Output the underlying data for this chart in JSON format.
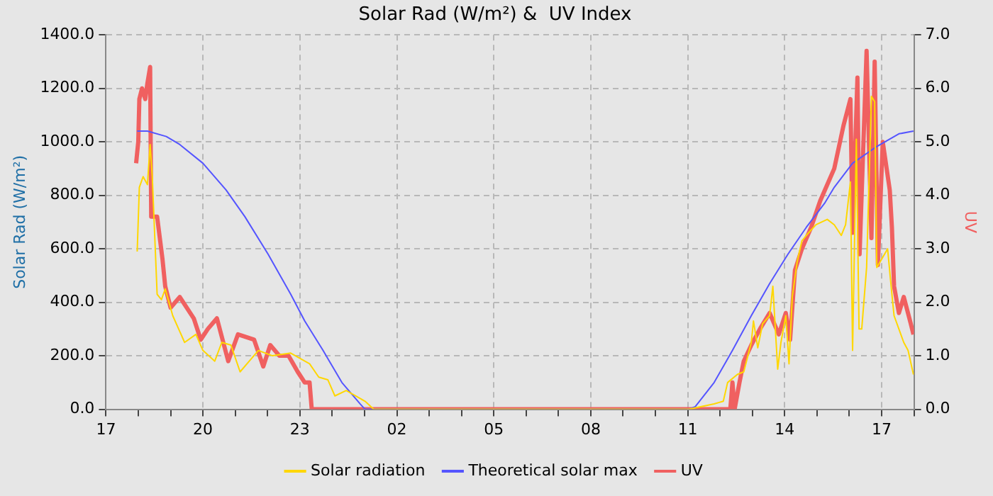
{
  "chart_data": {
    "type": "line",
    "title": "Solar Rad (W/m²) &  UV Index",
    "ylabel": "Solar Rad (W/m²)",
    "y2label": "UV",
    "xlim": [
      "--01-01T17:00",
      "--01-02T18:00"
    ],
    "xticks": [
      {
        "value": "--01-01T17:00",
        "label": "17"
      },
      {
        "value": "--01-01T18:00",
        "label": null
      },
      {
        "value": "--01-01T19:00",
        "label": null
      },
      {
        "value": "--01-01T20:00",
        "label": "20"
      },
      {
        "value": "--01-01T21:00",
        "label": null
      },
      {
        "value": "--01-01T22:00",
        "label": null
      },
      {
        "value": "--01-01T23:00",
        "label": "23"
      },
      {
        "value": "--01-02T00:00",
        "label": null
      },
      {
        "value": "--01-02T01:00",
        "label": null
      },
      {
        "value": "--01-02T02:00",
        "label": "02"
      },
      {
        "value": "--01-02T03:00",
        "label": null
      },
      {
        "value": "--01-02T04:00",
        "label": null
      },
      {
        "value": "--01-02T05:00",
        "label": "05"
      },
      {
        "value": "--01-02T06:00",
        "label": null
      },
      {
        "value": "--01-02T07:00",
        "label": null
      },
      {
        "value": "--01-02T08:00",
        "label": "08"
      },
      {
        "value": "--01-02T09:00",
        "label": null
      },
      {
        "value": "--01-02T10:00",
        "label": null
      },
      {
        "value": "--01-02T11:00",
        "label": "11"
      },
      {
        "value": "--01-02T12:00",
        "label": null
      },
      {
        "value": "--01-02T13:00",
        "label": null
      },
      {
        "value": "--01-02T14:00",
        "label": "14"
      },
      {
        "value": "--01-02T15:00",
        "label": null
      },
      {
        "value": "--01-02T16:00",
        "label": null
      },
      {
        "value": "--01-02T17:00",
        "label": "17"
      },
      {
        "value": "--01-02T18:00",
        "label": null
      }
    ],
    "ylim": [
      0,
      1400
    ],
    "yticks": [
      {
        "value": 0,
        "label": "0.0"
      },
      {
        "value": 200,
        "label": "200.0"
      },
      {
        "value": 400,
        "label": "400.0"
      },
      {
        "value": 600,
        "label": "600.0"
      },
      {
        "value": 800,
        "label": "800.0"
      },
      {
        "value": 1000,
        "label": "1000.0"
      },
      {
        "value": 1200,
        "label": "1200.0"
      },
      {
        "value": 1400,
        "label": "1400.0"
      }
    ],
    "y2lim": [
      0,
      7
    ],
    "y2ticks": [
      {
        "value": 0,
        "label": "0.0"
      },
      {
        "value": 1,
        "label": "1.0"
      },
      {
        "value": 2,
        "label": "2.0"
      },
      {
        "value": 3,
        "label": "3.0"
      },
      {
        "value": 4,
        "label": "4.0"
      },
      {
        "value": 5,
        "label": "5.0"
      },
      {
        "value": 6,
        "label": "6.0"
      },
      {
        "value": 7,
        "label": "7.0"
      }
    ],
    "grid": true,
    "legend": "bottom",
    "marker": "none",
    "line_style": "solid",
    "series": [
      {
        "name": "Solar radiation",
        "color": "#ffd700",
        "x": [
          "--01-01T17:58",
          "--01-01T18:02",
          "--01-01T18:09",
          "--01-01T18:17",
          "--01-01T18:22",
          "--01-01T18:26",
          "--01-01T18:35",
          "--01-01T18:43",
          "--01-01T18:50",
          "--01-01T19:04",
          "--01-01T19:26",
          "--01-01T19:47",
          "--01-01T20:00",
          "--01-01T20:22",
          "--01-01T20:35",
          "--01-01T20:52",
          "--01-01T21:09",
          "--01-01T21:43",
          "--01-01T22:09",
          "--01-01T22:43",
          "--01-01T23:18",
          "--01-01T23:35",
          "--01-01T23:52",
          "--01-02T00:05",
          "--01-02T00:26",
          "--01-02T01:01",
          "--01-02T01:17",
          "--01-02T11:02",
          "--01-02T11:49",
          "--01-02T12:06",
          "--01-02T12:14",
          "--01-02T12:32",
          "--01-02T12:44",
          "--01-02T12:58",
          "--01-02T13:02",
          "--01-02T13:10",
          "--01-02T13:19",
          "--01-02T13:32",
          "--01-02T13:38",
          "--01-02T13:47",
          "--01-02T13:53",
          "--01-02T14:02",
          "--01-02T14:08",
          "--01-02T14:14",
          "--01-02T14:23",
          "--01-02T14:32",
          "--01-02T14:40",
          "--01-02T14:58",
          "--01-02T15:19",
          "--01-02T15:32",
          "--01-02T15:45",
          "--01-02T15:53",
          "--01-02T16:02",
          "--01-02T16:06",
          "--01-02T16:13",
          "--01-02T16:18",
          "--01-02T16:23",
          "--01-02T16:32",
          "--01-02T16:41",
          "--01-02T16:47",
          "--01-02T16:51",
          "--01-02T17:11",
          "--01-02T17:19",
          "--01-02T17:23",
          "--01-02T17:41",
          "--01-02T17:49",
          "--01-02T17:59"
        ],
        "values": [
          590,
          830,
          870,
          840,
          990,
          870,
          430,
          410,
          450,
          350,
          250,
          280,
          220,
          180,
          250,
          240,
          140,
          220,
          200,
          210,
          170,
          120,
          110,
          50,
          70,
          30,
          0,
          0,
          20,
          30,
          100,
          130,
          140,
          250,
          330,
          230,
          320,
          350,
          460,
          150,
          250,
          350,
          170,
          420,
          550,
          630,
          650,
          690,
          710,
          690,
          650,
          690,
          850,
          220,
          1010,
          300,
          300,
          530,
          1170,
          1150,
          530,
          600,
          430,
          350,
          250,
          220,
          130
        ]
      },
      {
        "name": "Theoretical solar max",
        "color": "#5555ff",
        "x": [
          "--01-01T17:58",
          "--01-01T18:17",
          "--01-01T18:52",
          "--01-01T19:17",
          "--01-01T20:00",
          "--01-01T20:43",
          "--01-01T21:18",
          "--01-01T22:01",
          "--01-01T22:43",
          "--01-01T23:09",
          "--01-01T23:43",
          "--01-02T00:18",
          "--01-02T00:52",
          "--01-02T01:01",
          "--01-02T11:02",
          "--01-02T11:14",
          "--01-02T11:49",
          "--01-02T12:23",
          "--01-02T12:58",
          "--01-02T13:32",
          "--01-02T14:06",
          "--01-02T14:40",
          "--01-02T15:14",
          "--01-02T15:32",
          "--01-02T16:06",
          "--01-02T16:49",
          "--01-02T17:32",
          "--01-02T17:59"
        ],
        "values": [
          1040,
          1040,
          1020,
          990,
          920,
          820,
          720,
          580,
          430,
          330,
          220,
          100,
          20,
          0,
          0,
          10,
          100,
          220,
          350,
          470,
          580,
          680,
          770,
          830,
          920,
          980,
          1030,
          1040
        ]
      },
      {
        "name": "UV",
        "color": "#f06060",
        "axis": "y2",
        "x": [
          "--01-01T17:56",
          "--01-01T18:00",
          "--01-01T18:02",
          "--01-01T18:07",
          "--01-01T18:13",
          "--01-01T18:17",
          "--01-01T18:22",
          "--01-01T18:24",
          "--01-01T18:35",
          "--01-01T18:45",
          "--01-01T18:50",
          "--01-01T19:00",
          "--01-01T19:17",
          "--01-01T19:43",
          "--01-01T19:56",
          "--01-01T20:09",
          "--01-01T20:26",
          "--01-01T20:47",
          "--01-01T21:05",
          "--01-01T21:35",
          "--01-01T21:52",
          "--01-01T22:05",
          "--01-01T22:22",
          "--01-01T22:39",
          "--01-01T22:56",
          "--01-01T23:09",
          "--01-01T23:18",
          "--01-01T23:22",
          "--01-02T12:19",
          "--01-02T12:23",
          "--01-02T12:27",
          "--01-02T12:36",
          "--01-02T12:44",
          "--01-02T12:58",
          "--01-02T13:14",
          "--01-02T13:32",
          "--01-02T13:49",
          "--01-02T14:02",
          "--01-02T14:10",
          "--01-02T14:19",
          "--01-02T14:32",
          "--01-02T14:49",
          "--01-02T15:06",
          "--01-02T15:32",
          "--01-02T15:49",
          "--01-02T16:02",
          "--01-02T16:06",
          "--01-02T16:15",
          "--01-02T16:19",
          "--01-02T16:32",
          "--01-02T16:41",
          "--01-02T16:47",
          "--01-02T16:53",
          "--01-02T17:02",
          "--01-02T17:15",
          "--01-02T17:19",
          "--01-02T17:23",
          "--01-02T17:32",
          "--01-02T17:41",
          "--01-02T17:54",
          "--01-02T17:59"
        ],
        "values": [
          4.6,
          5.0,
          5.8,
          6.0,
          5.8,
          6.1,
          6.4,
          3.6,
          3.6,
          2.8,
          2.3,
          1.9,
          2.1,
          1.7,
          1.3,
          1.5,
          1.7,
          0.9,
          1.4,
          1.3,
          0.8,
          1.2,
          1.0,
          1.0,
          0.7,
          0.5,
          0.5,
          0,
          0,
          0.5,
          0,
          0.5,
          0.9,
          1.2,
          1.5,
          1.8,
          1.4,
          1.8,
          1.3,
          2.6,
          3.0,
          3.4,
          3.9,
          4.5,
          5.3,
          5.8,
          3.3,
          6.2,
          2.9,
          6.7,
          3.2,
          6.5,
          2.7,
          5.0,
          4.1,
          3.4,
          2.3,
          1.8,
          2.1,
          1.6,
          1.4
        ]
      }
    ]
  }
}
